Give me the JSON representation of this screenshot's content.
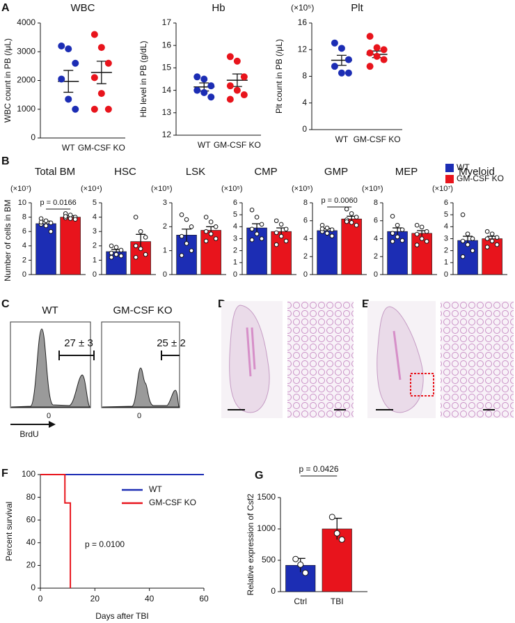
{
  "panels": [
    "A",
    "B",
    "C",
    "D",
    "E",
    "F",
    "G"
  ],
  "bm_legend": [
    {
      "name": "WT",
      "color": "#1c2db4"
    },
    {
      "name": "GM-CSF KO",
      "color": "#e8141c"
    }
  ],
  "bm_ylabel": "Number of cells in BM",
  "flow": {
    "plots": [
      {
        "title": "WT",
        "annotation": "27 ± 3"
      },
      {
        "title": "GM-CSF KO",
        "annotation": "25 ± 2"
      }
    ],
    "xtick": "0",
    "xlabel": "BrdU"
  },
  "chart_data": [
    {
      "type": "dot",
      "title": "WBC",
      "ylabel": "WBC count in PB (/μL)",
      "categories": [
        "WT",
        "GM-CSF KO"
      ],
      "colors": [
        "#1c2db4",
        "#e8141c"
      ],
      "points": [
        [
          3200,
          3100,
          2600,
          2050,
          1350,
          1000
        ],
        [
          3600,
          3150,
          2600,
          2100,
          1550,
          1000,
          1000
        ]
      ],
      "values": [
        1970,
        2280
      ],
      "errors": [
        380,
        390
      ],
      "ylim": [
        0,
        4000
      ],
      "yticks": [
        0,
        1000,
        2000,
        3000,
        4000
      ]
    },
    {
      "type": "dot",
      "title": "Hb",
      "ylabel": "Hb level in PB (g/dL)",
      "categories": [
        "WT",
        "GM-CSF KO"
      ],
      "colors": [
        "#1c2db4",
        "#e8141c"
      ],
      "points": [
        [
          14.6,
          14.5,
          14.2,
          14.0,
          13.9,
          13.7
        ],
        [
          15.5,
          15.3,
          14.6,
          14.2,
          14.0,
          13.8,
          13.6
        ]
      ],
      "values": [
        14.15,
        14.45
      ],
      "errors": [
        0.18,
        0.28
      ],
      "ylim": [
        12,
        17
      ],
      "yticks": [
        12,
        13,
        14,
        15,
        16,
        17
      ]
    },
    {
      "type": "dot",
      "title": "Plt",
      "multiplier": "(×10⁵)",
      "ylabel": "Plt count in PB (/μL)",
      "categories": [
        "WT",
        "GM-CSF KO"
      ],
      "colors": [
        "#1c2db4",
        "#e8141c"
      ],
      "points": [
        [
          13.0,
          12.2,
          10.5,
          9.5,
          8.5,
          8.5
        ],
        [
          14.0,
          12.3,
          12.0,
          11.5,
          11.0,
          10.5,
          9.5
        ]
      ],
      "values": [
        10.4,
        11.3
      ],
      "errors": [
        0.75,
        0.5
      ],
      "ylim": [
        0,
        16
      ],
      "yticks": [
        0,
        4,
        8,
        12,
        16
      ]
    },
    {
      "type": "bar",
      "title": "Total BM",
      "multiplier": "(×10⁷)",
      "colors": [
        "#1c2db4",
        "#e8141c"
      ],
      "values": [
        7.1,
        8.0
      ],
      "errors": [
        0.35,
        0.2
      ],
      "points": [
        [
          7.8,
          7.5,
          7.2,
          7.0,
          6.8,
          6.0,
          7.3
        ],
        [
          8.5,
          8.3,
          8.0,
          7.9,
          7.8,
          7.7,
          8.1
        ]
      ],
      "ylim": [
        0,
        10
      ],
      "yticks": [
        0,
        2,
        4,
        6,
        8,
        10
      ],
      "annotation": "p = 0.0166"
    },
    {
      "type": "bar",
      "title": "HSC",
      "multiplier": "(×10⁴)",
      "colors": [
        "#1c2db4",
        "#e8141c"
      ],
      "values": [
        1.6,
        2.3
      ],
      "errors": [
        0.15,
        0.5
      ],
      "points": [
        [
          2.0,
          1.9,
          1.7,
          1.5,
          1.4,
          1.3,
          1.2
        ],
        [
          4.0,
          3.0,
          2.6,
          2.0,
          1.8,
          1.4,
          1.2
        ]
      ],
      "ylim": [
        0,
        5
      ],
      "yticks": [
        0,
        1,
        2,
        3,
        4,
        5
      ]
    },
    {
      "type": "bar",
      "title": "LSK",
      "multiplier": "(×10⁵)",
      "colors": [
        "#1c2db4",
        "#e8141c"
      ],
      "values": [
        1.65,
        1.85
      ],
      "errors": [
        0.25,
        0.15
      ],
      "points": [
        [
          2.5,
          2.3,
          2.0,
          1.6,
          1.3,
          1.0,
          0.8
        ],
        [
          2.4,
          2.2,
          2.0,
          1.8,
          1.7,
          1.5,
          1.4
        ]
      ],
      "ylim": [
        0,
        3
      ],
      "yticks": [
        0,
        1,
        2,
        3
      ]
    },
    {
      "type": "bar",
      "title": "CMP",
      "multiplier": "(×10⁵)",
      "colors": [
        "#1c2db4",
        "#e8141c"
      ],
      "values": [
        3.9,
        3.6
      ],
      "errors": [
        0.35,
        0.3
      ],
      "points": [
        [
          5.4,
          4.8,
          4.2,
          3.8,
          3.4,
          3.0,
          2.9
        ],
        [
          4.5,
          4.2,
          3.8,
          3.5,
          3.2,
          2.8,
          2.5
        ]
      ],
      "ylim": [
        0,
        6
      ],
      "yticks": [
        0,
        1,
        2,
        3,
        4,
        5,
        6
      ]
    },
    {
      "type": "bar",
      "title": "GMP",
      "multiplier": "(×10⁵)",
      "colors": [
        "#1c2db4",
        "#e8141c"
      ],
      "values": [
        4.9,
        6.2
      ],
      "errors": [
        0.25,
        0.3
      ],
      "points": [
        [
          5.5,
          5.2,
          5.0,
          4.8,
          4.6,
          4.3,
          5.1
        ],
        [
          7.3,
          6.8,
          6.4,
          6.1,
          5.8,
          5.5,
          5.9
        ]
      ],
      "ylim": [
        0,
        8
      ],
      "yticks": [
        0,
        2,
        4,
        6,
        8
      ],
      "annotation": "p = 0.0060"
    },
    {
      "type": "bar",
      "title": "MEP",
      "multiplier": "(×10⁵)",
      "colors": [
        "#1c2db4",
        "#e8141c"
      ],
      "values": [
        4.8,
        4.6
      ],
      "errors": [
        0.4,
        0.3
      ],
      "points": [
        [
          6.5,
          5.5,
          5.0,
          4.6,
          4.2,
          3.8,
          3.7
        ],
        [
          5.5,
          5.3,
          4.8,
          4.5,
          4.0,
          3.7,
          3.3
        ]
      ],
      "ylim": [
        0,
        8
      ],
      "yticks": [
        0,
        2,
        4,
        6,
        8
      ]
    },
    {
      "type": "bar",
      "title": "Myeloid",
      "multiplier": "(×10⁷)",
      "colors": [
        "#1c2db4",
        "#e8141c"
      ],
      "values": [
        2.85,
        3.0
      ],
      "errors": [
        0.35,
        0.2
      ],
      "points": [
        [
          5.0,
          3.4,
          3.0,
          2.8,
          2.5,
          2.0,
          1.5
        ],
        [
          3.6,
          3.4,
          3.1,
          3.0,
          2.8,
          2.5,
          2.3
        ]
      ],
      "ylim": [
        0,
        6
      ],
      "yticks": [
        0,
        1,
        2,
        3,
        4,
        5,
        6
      ]
    },
    {
      "type": "line",
      "ylabel": "Percent survival",
      "xlabel": "Days after TBI",
      "xlim": [
        0,
        60
      ],
      "xticks": [
        0,
        20,
        40,
        60
      ],
      "ylim": [
        0,
        100
      ],
      "yticks": [
        0,
        20,
        40,
        60,
        80,
        100
      ],
      "series": [
        {
          "name": "WT",
          "color": "#1c2db4",
          "x": [
            0,
            60
          ],
          "values": [
            100,
            100
          ]
        },
        {
          "name": "GM-CSF KO",
          "color": "#e8141c",
          "x": [
            0,
            9,
            9,
            11,
            11
          ],
          "values": [
            100,
            100,
            75,
            75,
            0
          ]
        }
      ],
      "annotation": "p = 0.0100"
    },
    {
      "type": "bar",
      "ylabel": "Relative expression of Csf2",
      "categories": [
        "Ctrl",
        "TBI"
      ],
      "colors": [
        "#1c2db4",
        "#e8141c"
      ],
      "values": [
        420,
        1000
      ],
      "errors": [
        110,
        170
      ],
      "points": [
        [
          520,
          430,
          300
        ],
        [
          1190,
          930,
          830
        ]
      ],
      "ylim": [
        0,
        1500
      ],
      "yticks": [
        0,
        500,
        1000,
        1500
      ],
      "annotation": "p = 0.0426"
    }
  ]
}
